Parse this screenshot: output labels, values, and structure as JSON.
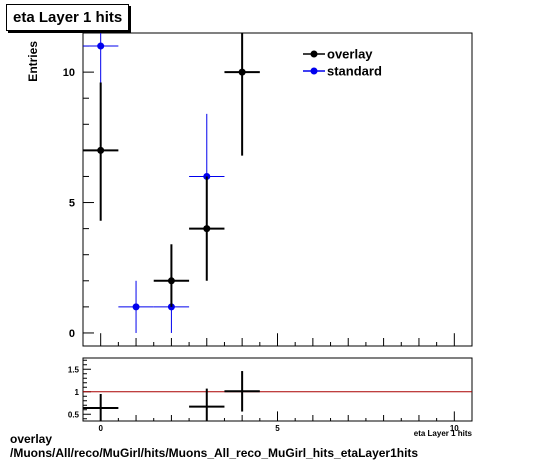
{
  "title": "eta Layer 1 hits",
  "footer": {
    "line1": "overlay",
    "line2": "/Muons/All/reco/MuGirl/hits/Muons_All_reco_MuGirl_hits_etaLayer1hits"
  },
  "chart_data": [
    {
      "type": "scatter",
      "ylabel": "Entries",
      "xlabel": "eta Layer 1 hits",
      "xlim": [
        -0.5,
        10.5
      ],
      "ylim": [
        -0.5,
        11.5
      ],
      "y_ticks": [
        "0",
        "5",
        "10"
      ],
      "legend": {
        "placement": "top-right",
        "entries": [
          "overlay",
          "standard"
        ]
      },
      "series": [
        {
          "name": "overlay",
          "color": "#000000",
          "points": [
            {
              "x": 0,
              "y": 7,
              "xerr": 0.5,
              "yerr_lo": 2.7,
              "yerr_hi": 2.6
            },
            {
              "x": 2,
              "y": 2,
              "xerr": 0.5,
              "yerr_lo": 1.0,
              "yerr_hi": 1.4
            },
            {
              "x": 3,
              "y": 4,
              "xerr": 0.5,
              "yerr_lo": 2.0,
              "yerr_hi": 2.0
            },
            {
              "x": 4,
              "y": 10,
              "xerr": 0.5,
              "yerr_lo": 3.2,
              "yerr_hi": 3.0
            }
          ]
        },
        {
          "name": "standard",
          "color": "#0000ee",
          "points": [
            {
              "x": 0,
              "y": 11,
              "xerr": 0.5,
              "yerr_lo": 3.3,
              "yerr_hi": 3.0
            },
            {
              "x": 1,
              "y": 1,
              "xerr": 0.5,
              "yerr_lo": 1.0,
              "yerr_hi": 1.0
            },
            {
              "x": 2,
              "y": 1,
              "xerr": 0.5,
              "yerr_lo": 1.0,
              "yerr_hi": 1.0
            },
            {
              "x": 3,
              "y": 6,
              "xerr": 0.5,
              "yerr_lo": 2.4,
              "yerr_hi": 2.4
            }
          ]
        }
      ]
    },
    {
      "type": "scatter",
      "xlabel": "eta Layer 1 hits",
      "xlim": [
        -0.5,
        10.5
      ],
      "ylim": [
        0.35,
        1.75
      ],
      "x_ticks": [
        "0",
        "5",
        "10"
      ],
      "y_ticks": [
        "0.5",
        "1",
        "1.5"
      ],
      "reference_line": {
        "y": 1,
        "color": "#aa0000"
      },
      "series": [
        {
          "color": "#000000",
          "points": [
            {
              "x": 0,
              "y": 0.64,
              "xerr": 0.5,
              "yerr_lo": 0.35,
              "yerr_hi": 0.31
            },
            {
              "x": 3,
              "y": 0.67,
              "xerr": 0.5,
              "yerr_lo": 0.4,
              "yerr_hi": 0.4
            },
            {
              "x": 4,
              "y": 1.01,
              "xerr": 0.5,
              "yerr_lo": 0.45,
              "yerr_hi": 0.45
            }
          ]
        }
      ]
    }
  ]
}
